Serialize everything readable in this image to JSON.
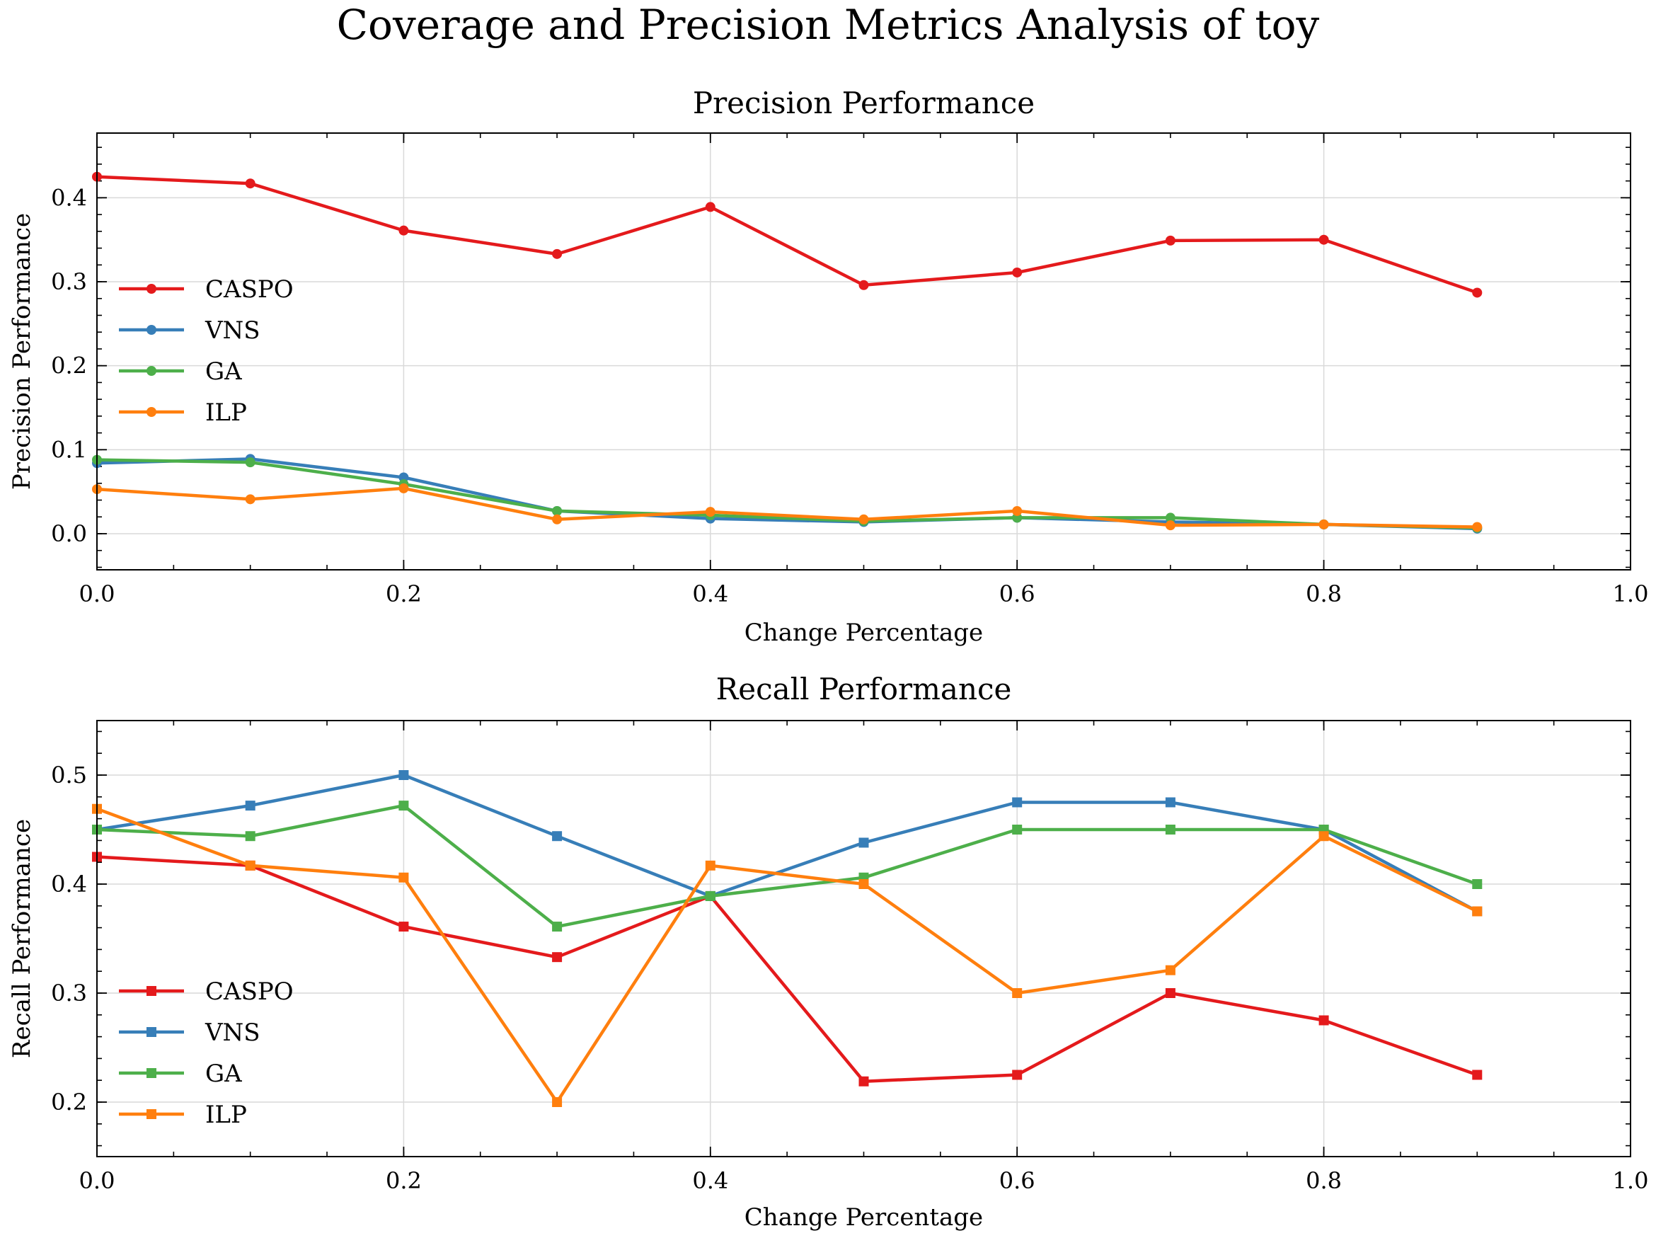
{
  "figure": {
    "title": "Coverage and Precision Metrics Analysis of toy"
  },
  "colors": {
    "CASPO": "#e41a1c",
    "VNS": "#377eb8",
    "GA": "#4daf4a",
    "ILP": "#ff7f0e"
  },
  "chart_data": [
    {
      "type": "line",
      "title": "Precision Performance",
      "xlabel": "Change Percentage",
      "ylabel": "Precision Performance",
      "xlim": [
        0,
        1.0
      ],
      "ylim": [
        -0.043,
        0.477
      ],
      "xticks": [
        0.0,
        0.2,
        0.4,
        0.6,
        0.8,
        1.0
      ],
      "xtick_labels": [
        "0.0",
        "0.2",
        "0.4",
        "0.6",
        "0.8",
        "1.0"
      ],
      "yticks": [
        0.0,
        0.1,
        0.2,
        0.3,
        0.4
      ],
      "ytick_labels": [
        "0.0",
        "0.1",
        "0.2",
        "0.3",
        "0.4"
      ],
      "marker": "circle",
      "grid": true,
      "legend_position": "center-left",
      "x": [
        0.0,
        0.1,
        0.2,
        0.3,
        0.4,
        0.5,
        0.6,
        0.7,
        0.8,
        0.9
      ],
      "series": [
        {
          "name": "CASPO",
          "values": [
            0.425,
            0.417,
            0.361,
            0.333,
            0.389,
            0.296,
            0.311,
            0.349,
            0.35,
            0.287
          ]
        },
        {
          "name": "VNS",
          "values": [
            0.084,
            0.089,
            0.067,
            0.027,
            0.018,
            0.014,
            0.019,
            0.014,
            0.011,
            0.006
          ]
        },
        {
          "name": "GA",
          "values": [
            0.088,
            0.085,
            0.059,
            0.027,
            0.022,
            0.015,
            0.019,
            0.019,
            0.011,
            0.007
          ]
        },
        {
          "name": "ILP",
          "values": [
            0.053,
            0.041,
            0.054,
            0.017,
            0.026,
            0.017,
            0.027,
            0.01,
            0.011,
            0.008
          ]
        }
      ]
    },
    {
      "type": "line",
      "title": "Recall Performance",
      "xlabel": "Change Percentage",
      "ylabel": "Recall Performance",
      "xlim": [
        0,
        1.0
      ],
      "ylim": [
        0.15,
        0.55
      ],
      "xticks": [
        0.0,
        0.2,
        0.4,
        0.6,
        0.8,
        1.0
      ],
      "xtick_labels": [
        "0.0",
        "0.2",
        "0.4",
        "0.6",
        "0.8",
        "1.0"
      ],
      "yticks": [
        0.2,
        0.3,
        0.4,
        0.5
      ],
      "ytick_labels": [
        "0.2",
        "0.3",
        "0.4",
        "0.5"
      ],
      "marker": "square",
      "grid": true,
      "legend_position": "lower-left",
      "x": [
        0.0,
        0.1,
        0.2,
        0.3,
        0.4,
        0.5,
        0.6,
        0.7,
        0.8,
        0.9
      ],
      "series": [
        {
          "name": "CASPO",
          "values": [
            0.425,
            0.417,
            0.361,
            0.333,
            0.389,
            0.219,
            0.225,
            0.3,
            0.275,
            0.225
          ]
        },
        {
          "name": "VNS",
          "values": [
            0.45,
            0.472,
            0.5,
            0.444,
            0.389,
            0.438,
            0.475,
            0.475,
            0.45,
            0.375
          ]
        },
        {
          "name": "GA",
          "values": [
            0.45,
            0.444,
            0.472,
            0.361,
            0.389,
            0.406,
            0.45,
            0.45,
            0.45,
            0.4
          ]
        },
        {
          "name": "ILP",
          "values": [
            0.469,
            0.417,
            0.406,
            0.2,
            0.417,
            0.4,
            0.3,
            0.321,
            0.444,
            0.375
          ]
        }
      ]
    }
  ]
}
